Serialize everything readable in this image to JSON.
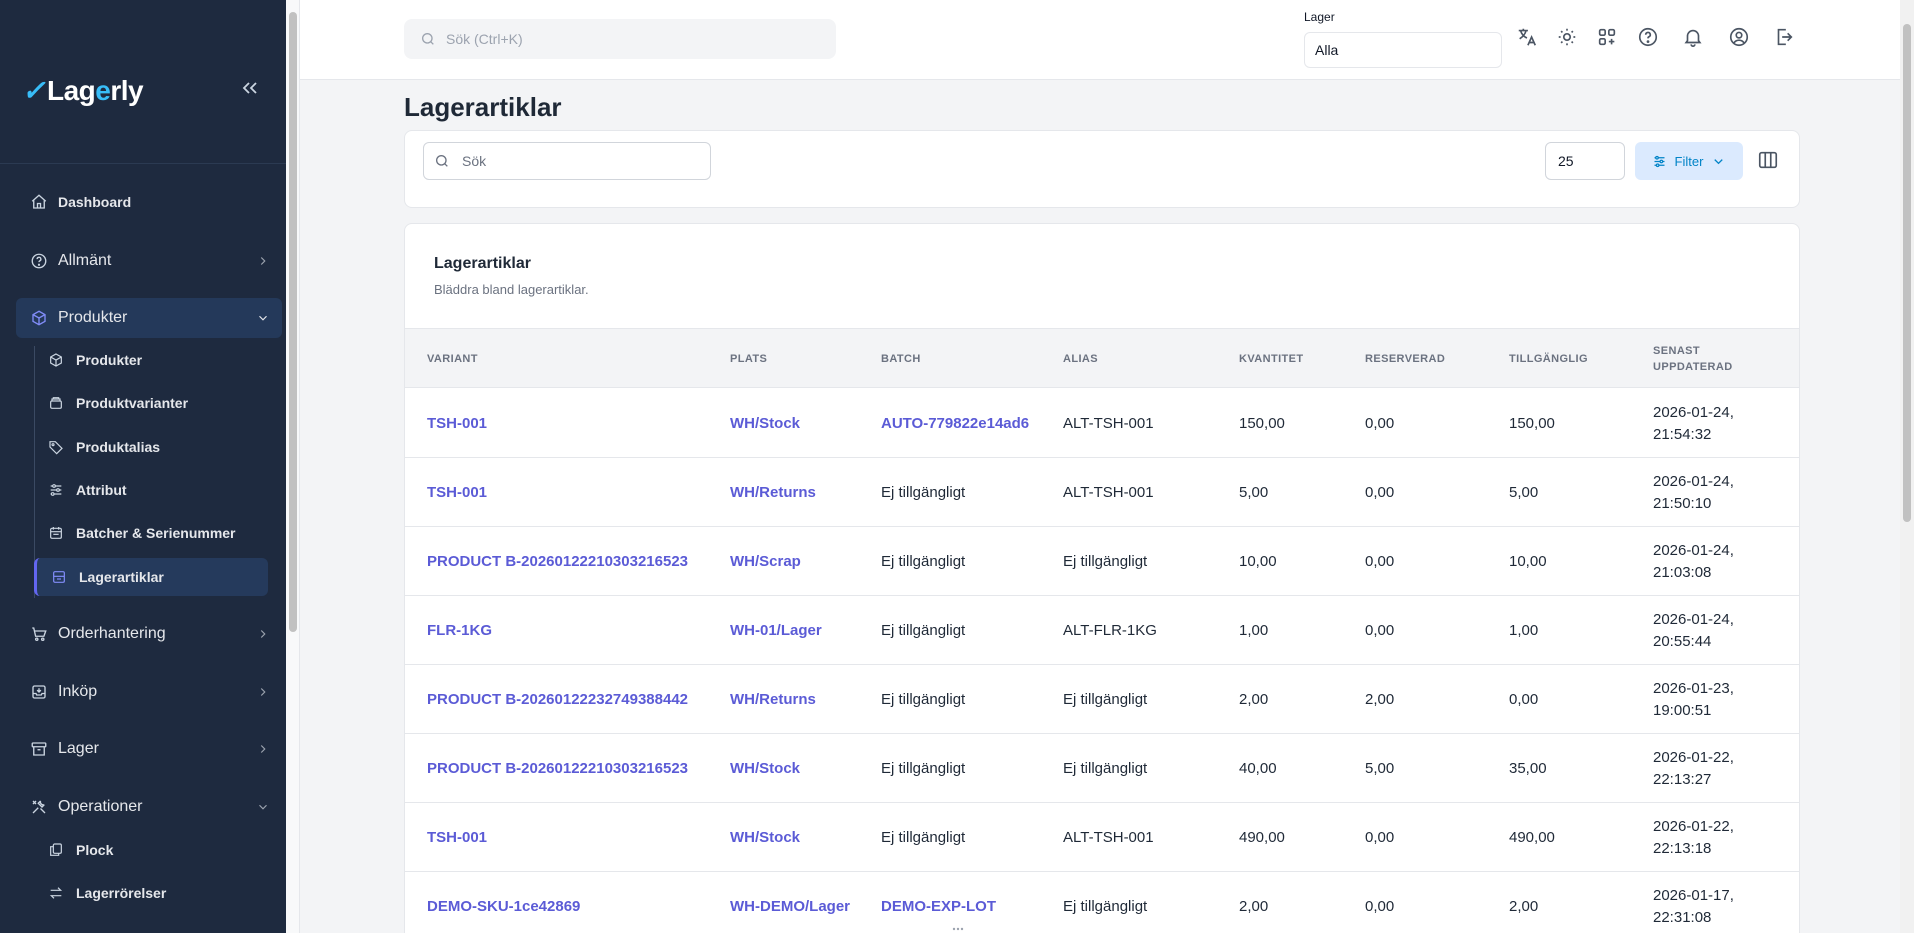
{
  "sidebar": {
    "logo": {
      "prefix": "Lag",
      "accent": "e",
      "suffix": "rly"
    },
    "items": [
      {
        "label": "Dashboard"
      },
      {
        "label": "Allmänt"
      },
      {
        "label": "Produkter"
      },
      {
        "label": "Orderhantering"
      },
      {
        "label": "Inköp"
      },
      {
        "label": "Lager"
      },
      {
        "label": "Operationer"
      }
    ],
    "produkter_sub": [
      {
        "label": "Produkter"
      },
      {
        "label": "Produktvarianter"
      },
      {
        "label": "Produktalias"
      },
      {
        "label": "Attribut"
      },
      {
        "label": "Batcher & Serienummer"
      },
      {
        "label": "Lagerartiklar"
      }
    ],
    "operationer_sub": [
      {
        "label": "Plock"
      },
      {
        "label": "Lagerrörelser"
      }
    ]
  },
  "topbar": {
    "search_placeholder": "Sök (Ctrl+K)",
    "lager_label": "Lager",
    "lager_value": "Alla"
  },
  "page": {
    "title": "Lagerartiklar",
    "search_placeholder": "Sök",
    "page_size": "25",
    "filter_label": "Filter"
  },
  "table": {
    "title": "Lagerartiklar",
    "subtitle": "Bläddra bland lagerartiklar.",
    "headers": [
      "VARIANT",
      "PLATS",
      "BATCH",
      "ALIAS",
      "KVANTITET",
      "RESERVERAD",
      "TILLGÄNGLIG",
      "SENAST UPPDATERAD"
    ],
    "rows": [
      {
        "variant": "TSH-001",
        "plats": "WH/Stock",
        "batch": "AUTO-779822e14ad6",
        "batch_link": true,
        "alias": "ALT-TSH-001",
        "kvantitet": "150,00",
        "reserverad": "0,00",
        "tillganglig": "150,00",
        "date": "2026-01-24,",
        "time": "21:54:32"
      },
      {
        "variant": "TSH-001",
        "plats": "WH/Returns",
        "batch": "Ej tillgängligt",
        "batch_link": false,
        "alias": "ALT-TSH-001",
        "kvantitet": "5,00",
        "reserverad": "0,00",
        "tillganglig": "5,00",
        "date": "2026-01-24,",
        "time": "21:50:10"
      },
      {
        "variant": "PRODUCT B-20260122210303216523",
        "plats": "WH/Scrap",
        "batch": "Ej tillgängligt",
        "batch_link": false,
        "alias": "Ej tillgängligt",
        "kvantitet": "10,00",
        "reserverad": "0,00",
        "tillganglig": "10,00",
        "date": "2026-01-24,",
        "time": "21:03:08"
      },
      {
        "variant": "FLR-1KG",
        "plats": "WH-01/Lager",
        "batch": "Ej tillgängligt",
        "batch_link": false,
        "alias": "ALT-FLR-1KG",
        "kvantitet": "1,00",
        "reserverad": "0,00",
        "tillganglig": "1,00",
        "date": "2026-01-24,",
        "time": "20:55:44"
      },
      {
        "variant": "PRODUCT B-20260122232749388442",
        "plats": "WH/Returns",
        "batch": "Ej tillgängligt",
        "batch_link": false,
        "alias": "Ej tillgängligt",
        "kvantitet": "2,00",
        "reserverad": "2,00",
        "tillganglig": "0,00",
        "date": "2026-01-23,",
        "time": "19:00:51"
      },
      {
        "variant": "PRODUCT B-20260122210303216523",
        "plats": "WH/Stock",
        "batch": "Ej tillgängligt",
        "batch_link": false,
        "alias": "Ej tillgängligt",
        "kvantitet": "40,00",
        "reserverad": "5,00",
        "tillganglig": "35,00",
        "date": "2026-01-22,",
        "time": "22:13:27"
      },
      {
        "variant": "TSH-001",
        "plats": "WH/Stock",
        "batch": "Ej tillgängligt",
        "batch_link": false,
        "alias": "ALT-TSH-001",
        "kvantitet": "490,00",
        "reserverad": "0,00",
        "tillganglig": "490,00",
        "date": "2026-01-22,",
        "time": "22:13:18"
      },
      {
        "variant": "DEMO-SKU-1ce42869",
        "plats": "WH-DEMO/Lager",
        "batch": "DEMO-EXP-LOT",
        "batch_link": true,
        "alias": "Ej tillgängligt",
        "kvantitet": "2,00",
        "reserverad": "0,00",
        "tillganglig": "2,00",
        "date": "2026-01-17,",
        "time": "22:31:08"
      }
    ]
  },
  "colors": {
    "sidebar_bg": "#1e2a3f",
    "link": "#5b5bd6",
    "filter_bg": "#dbeafe",
    "filter_text": "#0284c7"
  }
}
